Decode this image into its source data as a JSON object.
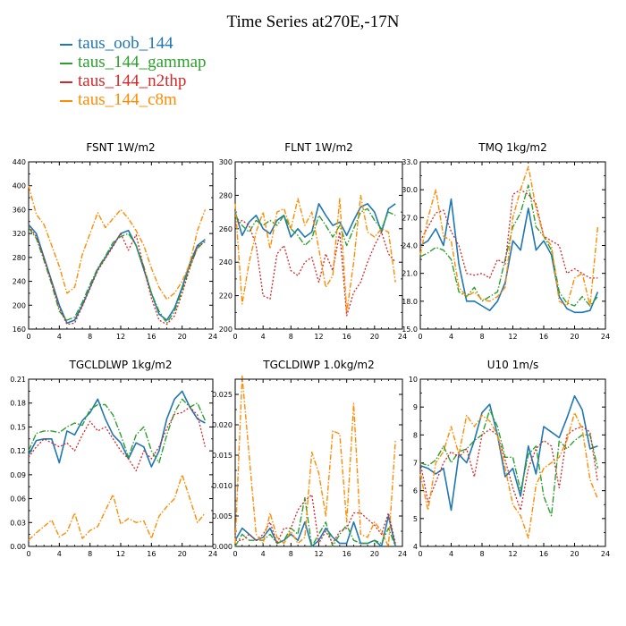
{
  "title": "Time Series at270E,-17N",
  "legend": [
    {
      "name": "taus_oob_144",
      "color": "#1f77b4"
    },
    {
      "name": "taus_144_gammap",
      "color": "#2ca02c"
    },
    {
      "name": "taus_144_n2thp",
      "color": "#d62728"
    },
    {
      "name": "taus_144_c8m",
      "color": "#ff8c00"
    }
  ],
  "chart_data": [
    {
      "type": "line",
      "title": "FSNT   1W/m2",
      "xlim": [
        0,
        24
      ],
      "ylim": [
        160,
        440
      ],
      "xticks": [
        0,
        4,
        8,
        12,
        16,
        20,
        24
      ],
      "yticks": [
        160,
        200,
        240,
        280,
        320,
        360,
        400,
        440
      ],
      "x": [
        0,
        1,
        2,
        3,
        4,
        5,
        6,
        7,
        8,
        9,
        10,
        11,
        12,
        13,
        14,
        15,
        16,
        17,
        18,
        19,
        20,
        21,
        22,
        23
      ],
      "series": [
        {
          "name": "taus_oob_144",
          "values": [
            335,
            320,
            280,
            240,
            200,
            170,
            175,
            200,
            230,
            260,
            280,
            300,
            320,
            325,
            300,
            260,
            220,
            185,
            175,
            195,
            230,
            270,
            300,
            310
          ]
        },
        {
          "name": "taus_144_gammap",
          "values": [
            330,
            312,
            275,
            235,
            190,
            175,
            180,
            205,
            235,
            262,
            282,
            305,
            315,
            320,
            300,
            265,
            220,
            190,
            170,
            190,
            225,
            265,
            295,
            308
          ]
        },
        {
          "name": "taus_144_n2thp",
          "values": [
            332,
            315,
            278,
            238,
            195,
            168,
            170,
            198,
            228,
            258,
            278,
            298,
            320,
            292,
            318,
            262,
            212,
            175,
            168,
            182,
            220,
            262,
            298,
            306
          ]
        },
        {
          "name": "taus_144_c8m",
          "values": [
            400,
            352,
            335,
            300,
            265,
            220,
            230,
            285,
            320,
            355,
            330,
            345,
            360,
            345,
            325,
            300,
            262,
            230,
            210,
            220,
            240,
            270,
            325,
            360
          ]
        }
      ]
    },
    {
      "type": "line",
      "title": "FLNT   1W/m2",
      "xlim": [
        0,
        24
      ],
      "ylim": [
        200,
        300
      ],
      "xticks": [
        0,
        4,
        8,
        12,
        16,
        20,
        24
      ],
      "yticks": [
        200,
        220,
        240,
        260,
        280,
        300
      ],
      "x": [
        0,
        1,
        2,
        3,
        4,
        5,
        6,
        7,
        8,
        9,
        10,
        11,
        12,
        13,
        14,
        15,
        16,
        17,
        18,
        19,
        20,
        21,
        22,
        23
      ],
      "series": [
        {
          "name": "taus_oob_144",
          "values": [
            270,
            256,
            264,
            268,
            260,
            257,
            265,
            268,
            255,
            260,
            255,
            258,
            275,
            268,
            262,
            264,
            256,
            265,
            273,
            275,
            270,
            258,
            272,
            275
          ]
        },
        {
          "name": "taus_144_gammap",
          "values": [
            268,
            262,
            258,
            265,
            262,
            265,
            262,
            268,
            260,
            256,
            250,
            254,
            268,
            262,
            255,
            262,
            250,
            260,
            270,
            272,
            265,
            260,
            270,
            268
          ]
        },
        {
          "name": "taus_144_n2thp",
          "values": [
            262,
            265,
            262,
            250,
            220,
            218,
            245,
            250,
            235,
            232,
            240,
            243,
            228,
            245,
            235,
            258,
            208,
            222,
            228,
            240,
            250,
            258,
            245,
            240
          ]
        },
        {
          "name": "taus_144_c8m",
          "values": [
            275,
            215,
            240,
            258,
            270,
            248,
            270,
            272,
            260,
            278,
            262,
            270,
            248,
            225,
            232,
            278,
            210,
            240,
            280,
            258,
            255,
            260,
            258,
            228
          ]
        }
      ]
    },
    {
      "type": "line",
      "title": "TMQ   1kg/m2",
      "xlim": [
        0,
        24
      ],
      "ylim": [
        15,
        33
      ],
      "xticks": [
        0,
        4,
        8,
        12,
        16,
        20,
        24
      ],
      "yticks": [
        15.0,
        18.0,
        21.0,
        24.0,
        27.0,
        30.0,
        33.0
      ],
      "x": [
        0,
        1,
        2,
        3,
        4,
        5,
        6,
        7,
        8,
        9,
        10,
        11,
        12,
        13,
        14,
        15,
        16,
        17,
        18,
        19,
        20,
        21,
        22,
        23
      ],
      "series": [
        {
          "name": "taus_oob_144",
          "values": [
            24.0,
            24.5,
            25.8,
            24.0,
            29.0,
            22.0,
            18.0,
            18.0,
            17.5,
            17.0,
            18.0,
            20.0,
            24.5,
            23.5,
            28.0,
            23.5,
            24.5,
            23.0,
            18.5,
            17.2,
            16.8,
            16.8,
            17.0,
            19.0
          ]
        },
        {
          "name": "taus_144_gammap",
          "values": [
            22.8,
            23.2,
            23.8,
            23.5,
            22.5,
            19.0,
            18.5,
            19.5,
            18.0,
            18.5,
            19.0,
            22.5,
            26.0,
            27.5,
            30.5,
            26.0,
            25.0,
            23.5,
            19.0,
            17.8,
            17.5,
            18.5,
            17.5,
            18.5
          ]
        },
        {
          "name": "taus_144_n2thp",
          "values": [
            24.5,
            26.0,
            27.5,
            27.8,
            25.5,
            24.0,
            21.0,
            20.8,
            21.0,
            20.5,
            22.5,
            22.0,
            29.5,
            30.0,
            29.5,
            28.5,
            25.0,
            24.5,
            24.0,
            21.0,
            21.5,
            21.0,
            20.5,
            20.5
          ]
        },
        {
          "name": "taus_144_c8m",
          "values": [
            23.0,
            27.0,
            30.0,
            25.0,
            24.5,
            19.5,
            18.5,
            19.0,
            18.2,
            18.0,
            18.5,
            19.5,
            27.0,
            30.0,
            32.5,
            28.0,
            25.0,
            24.0,
            18.0,
            17.5,
            20.5,
            21.0,
            17.5,
            26.0
          ]
        }
      ]
    },
    {
      "type": "line",
      "title": "TGCLDLWP   1kg/m2",
      "xlim": [
        0,
        24
      ],
      "ylim": [
        0,
        0.21
      ],
      "xticks": [
        0,
        4,
        8,
        12,
        16,
        20,
        24
      ],
      "yticks": [
        0.0,
        0.03,
        0.06,
        0.09,
        0.12,
        0.15,
        0.18,
        0.21
      ],
      "x": [
        0,
        1,
        2,
        3,
        4,
        5,
        6,
        7,
        8,
        9,
        10,
        11,
        12,
        13,
        14,
        15,
        16,
        17,
        18,
        19,
        20,
        21,
        22,
        23
      ],
      "series": [
        {
          "name": "taus_oob_144",
          "values": [
            0.115,
            0.133,
            0.135,
            0.135,
            0.105,
            0.145,
            0.14,
            0.158,
            0.168,
            0.185,
            0.16,
            0.14,
            0.13,
            0.11,
            0.13,
            0.125,
            0.1,
            0.12,
            0.16,
            0.185,
            0.195,
            0.175,
            0.16,
            0.155
          ]
        },
        {
          "name": "taus_144_gammap",
          "values": [
            0.12,
            0.142,
            0.145,
            0.145,
            0.143,
            0.15,
            0.155,
            0.152,
            0.172,
            0.178,
            0.178,
            0.165,
            0.14,
            0.112,
            0.14,
            0.15,
            0.12,
            0.105,
            0.14,
            0.168,
            0.185,
            0.175,
            0.18,
            0.158
          ]
        },
        {
          "name": "taus_144_n2thp",
          "values": [
            0.112,
            0.125,
            0.135,
            0.13,
            0.125,
            0.13,
            0.12,
            0.14,
            0.157,
            0.145,
            0.15,
            0.135,
            0.12,
            0.11,
            0.095,
            0.12,
            0.11,
            0.125,
            0.148,
            0.166,
            0.168,
            0.175,
            0.165,
            0.125
          ]
        },
        {
          "name": "taus_144_c8m",
          "values": [
            0.008,
            0.017,
            0.025,
            0.033,
            0.012,
            0.018,
            0.042,
            0.01,
            0.02,
            0.025,
            0.045,
            0.065,
            0.028,
            0.035,
            0.03,
            0.032,
            0.01,
            0.038,
            0.05,
            0.06,
            0.09,
            0.06,
            0.03,
            0.042
          ]
        }
      ]
    },
    {
      "type": "line",
      "title": "TGCLDIWP   1.0kg/m2",
      "xlim": [
        0,
        24
      ],
      "ylim": [
        0,
        0.0275
      ],
      "xticks": [
        0,
        4,
        8,
        12,
        16,
        20,
        24
      ],
      "yticks": [
        0.0,
        0.005,
        0.01,
        0.015,
        0.02,
        0.025
      ],
      "x": [
        0,
        1,
        2,
        3,
        4,
        5,
        6,
        7,
        8,
        9,
        10,
        11,
        12,
        13,
        14,
        15,
        16,
        17,
        18,
        19,
        20,
        21,
        22,
        23
      ],
      "series": [
        {
          "name": "taus_oob_144",
          "values": [
            0.001,
            0.003,
            0.002,
            0.001,
            0.0015,
            0.003,
            0.0005,
            0.001,
            0.002,
            0.001,
            0.004,
            0.0,
            0.001,
            0.003,
            0.0015,
            0.0005,
            0.0005,
            0.004,
            0.0005,
            0.0005,
            0.001,
            0.0,
            0.005,
            0.0
          ]
        },
        {
          "name": "taus_144_gammap",
          "values": [
            0.0,
            0.002,
            0.001,
            0.001,
            0.001,
            0.002,
            0.0005,
            0.001,
            0.003,
            0.002,
            0.008,
            0.0,
            0.002,
            0.004,
            0.0,
            0.002,
            0.0035,
            0.001,
            0.0005,
            0.0005,
            0.001,
            0.0005,
            0.003,
            0.0
          ]
        },
        {
          "name": "taus_144_n2thp",
          "values": [
            0.001,
            0.001,
            0.002,
            0.001,
            0.002,
            0.004,
            0.0005,
            0.003,
            0.003,
            0.006,
            0.0075,
            0.0085,
            0.0005,
            0.0025,
            0.0005,
            0.0025,
            0.003,
            0.0055,
            0.0055,
            0.0045,
            0.0035,
            0.002,
            0.0055,
            0.0005
          ]
        },
        {
          "name": "taus_144_c8m",
          "values": [
            0.0005,
            0.028,
            0.015,
            0.002,
            0.0005,
            0.0055,
            0.0015,
            0.0005,
            0.0025,
            0.0005,
            0.0015,
            0.0155,
            0.012,
            0.005,
            0.019,
            0.0185,
            0.004,
            0.0235,
            0.002,
            0.0015,
            0.004,
            0.0025,
            0.0,
            0.0175
          ]
        }
      ]
    },
    {
      "type": "line",
      "title": "U10   1m/s",
      "xlim": [
        0,
        24
      ],
      "ylim": [
        4,
        10
      ],
      "xticks": [
        0,
        4,
        8,
        12,
        16,
        20,
        24
      ],
      "yticks": [
        4,
        5,
        6,
        7,
        8,
        9,
        10
      ],
      "x": [
        0,
        1,
        2,
        3,
        4,
        5,
        6,
        7,
        8,
        9,
        10,
        11,
        12,
        13,
        14,
        15,
        16,
        17,
        18,
        19,
        20,
        21,
        22,
        23
      ],
      "series": [
        {
          "name": "taus_oob_144",
          "values": [
            6.9,
            6.8,
            6.6,
            6.8,
            5.3,
            7.3,
            7.0,
            7.8,
            8.8,
            9.1,
            8.0,
            6.5,
            6.8,
            5.8,
            7.6,
            6.6,
            8.3,
            8.1,
            7.9,
            8.6,
            9.4,
            8.9,
            7.5,
            7.6
          ]
        },
        {
          "name": "taus_144_gammap",
          "values": [
            7.0,
            6.9,
            7.1,
            7.6,
            7.0,
            7.4,
            7.5,
            7.8,
            8.0,
            8.9,
            8.3,
            7.2,
            7.2,
            6.0,
            7.3,
            7.6,
            5.8,
            5.1,
            7.8,
            7.5,
            7.8,
            8.0,
            8.0,
            6.8
          ]
        },
        {
          "name": "taus_144_n2thp",
          "values": [
            7.0,
            5.6,
            6.3,
            7.0,
            7.4,
            7.2,
            7.5,
            6.5,
            8.0,
            8.2,
            8.0,
            7.1,
            6.1,
            5.3,
            6.8,
            7.5,
            7.8,
            7.6,
            6.1,
            8.0,
            8.2,
            8.3,
            8.1,
            6.3
          ]
        },
        {
          "name": "taus_144_c8m",
          "values": [
            6.6,
            5.3,
            7.0,
            7.4,
            8.3,
            7.3,
            8.7,
            8.3,
            8.7,
            8.5,
            8.0,
            6.8,
            5.5,
            5.1,
            4.3,
            6.2,
            6.8,
            7.0,
            7.2,
            7.8,
            8.8,
            8.2,
            6.4,
            5.7
          ]
        }
      ]
    }
  ]
}
